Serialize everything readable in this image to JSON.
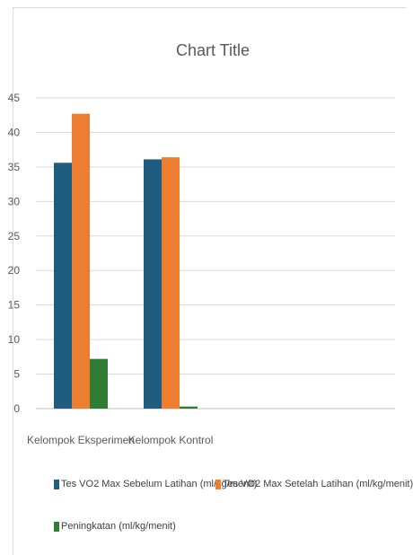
{
  "chart_data": {
    "type": "bar",
    "title": "Chart Title",
    "categories": [
      "Kelompok Eksperimen",
      "Kelompok Kontrol",
      "",
      ""
    ],
    "series": [
      {
        "name": "Tes VO2 Max Sebelum Latihan (ml/kg/menit)",
        "color": "#1f5c80",
        "values": [
          35.6,
          36.1,
          null,
          null
        ]
      },
      {
        "name": "Tes VO2 Max Setelah Latihan (ml/kg/menit)",
        "color": "#ed7d31",
        "values": [
          42.7,
          36.4,
          null,
          null
        ]
      },
      {
        "name": "Peningkatan (ml/kg/menit)",
        "color": "#2e7d32",
        "values": [
          7.2,
          0.3,
          null,
          null
        ]
      }
    ],
    "ylim": [
      0,
      45
    ],
    "yticks": [
      0,
      5,
      10,
      15,
      20,
      25,
      30,
      35,
      40,
      45
    ],
    "grid": true,
    "legend_position": "bottom"
  }
}
